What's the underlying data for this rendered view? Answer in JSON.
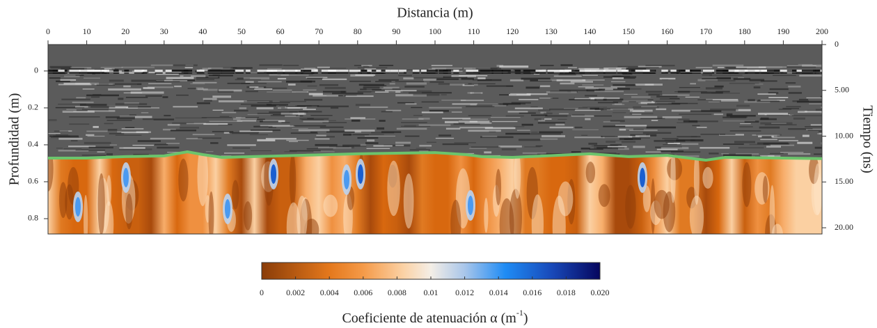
{
  "chart_data": {
    "type": "radargram",
    "title": "Distancia (m)",
    "ylabel": "Profundidad (m)",
    "y2label": "Tiempo (ns)",
    "xlim": [
      0,
      200
    ],
    "xticks": [
      0,
      10,
      20,
      30,
      40,
      50,
      60,
      70,
      80,
      90,
      100,
      110,
      120,
      130,
      140,
      150,
      160,
      170,
      180,
      190,
      200
    ],
    "ylim": [
      0.883,
      -0.143
    ],
    "yticks": [
      0,
      0.2,
      0.4,
      0.6,
      0.8
    ],
    "y2lim": [
      20.68,
      0
    ],
    "y2ticks": [
      0,
      {
        "value": 5,
        "label": "5.00"
      },
      {
        "value": 10,
        "label": "10.00"
      },
      {
        "value": 15,
        "label": "15.00"
      },
      {
        "value": 20,
        "label": "20.00"
      }
    ],
    "interface": {
      "color": "#6cc46c",
      "x": [
        0,
        10,
        20,
        30,
        36,
        40,
        45,
        60,
        80,
        100,
        108,
        112,
        120,
        140,
        150,
        160,
        170,
        175,
        190,
        200
      ],
      "values": [
        0.472,
        0.472,
        0.464,
        0.46,
        0.438,
        0.453,
        0.468,
        0.46,
        0.449,
        0.442,
        0.453,
        0.464,
        0.468,
        0.449,
        0.464,
        0.457,
        0.483,
        0.468,
        0.472,
        0.475
      ]
    },
    "colorbar": {
      "label": {
        "text": "Coeficiente de atenuación α (m",
        "sup": "-1",
        "close": ")"
      },
      "clim": [
        0,
        0.02
      ],
      "ticks": [
        0,
        0.002,
        0.004,
        0.006,
        0.008,
        0.01,
        0.012,
        0.014,
        0.016,
        0.018,
        {
          "value": 0.02,
          "label": "0.020"
        }
      ]
    }
  }
}
